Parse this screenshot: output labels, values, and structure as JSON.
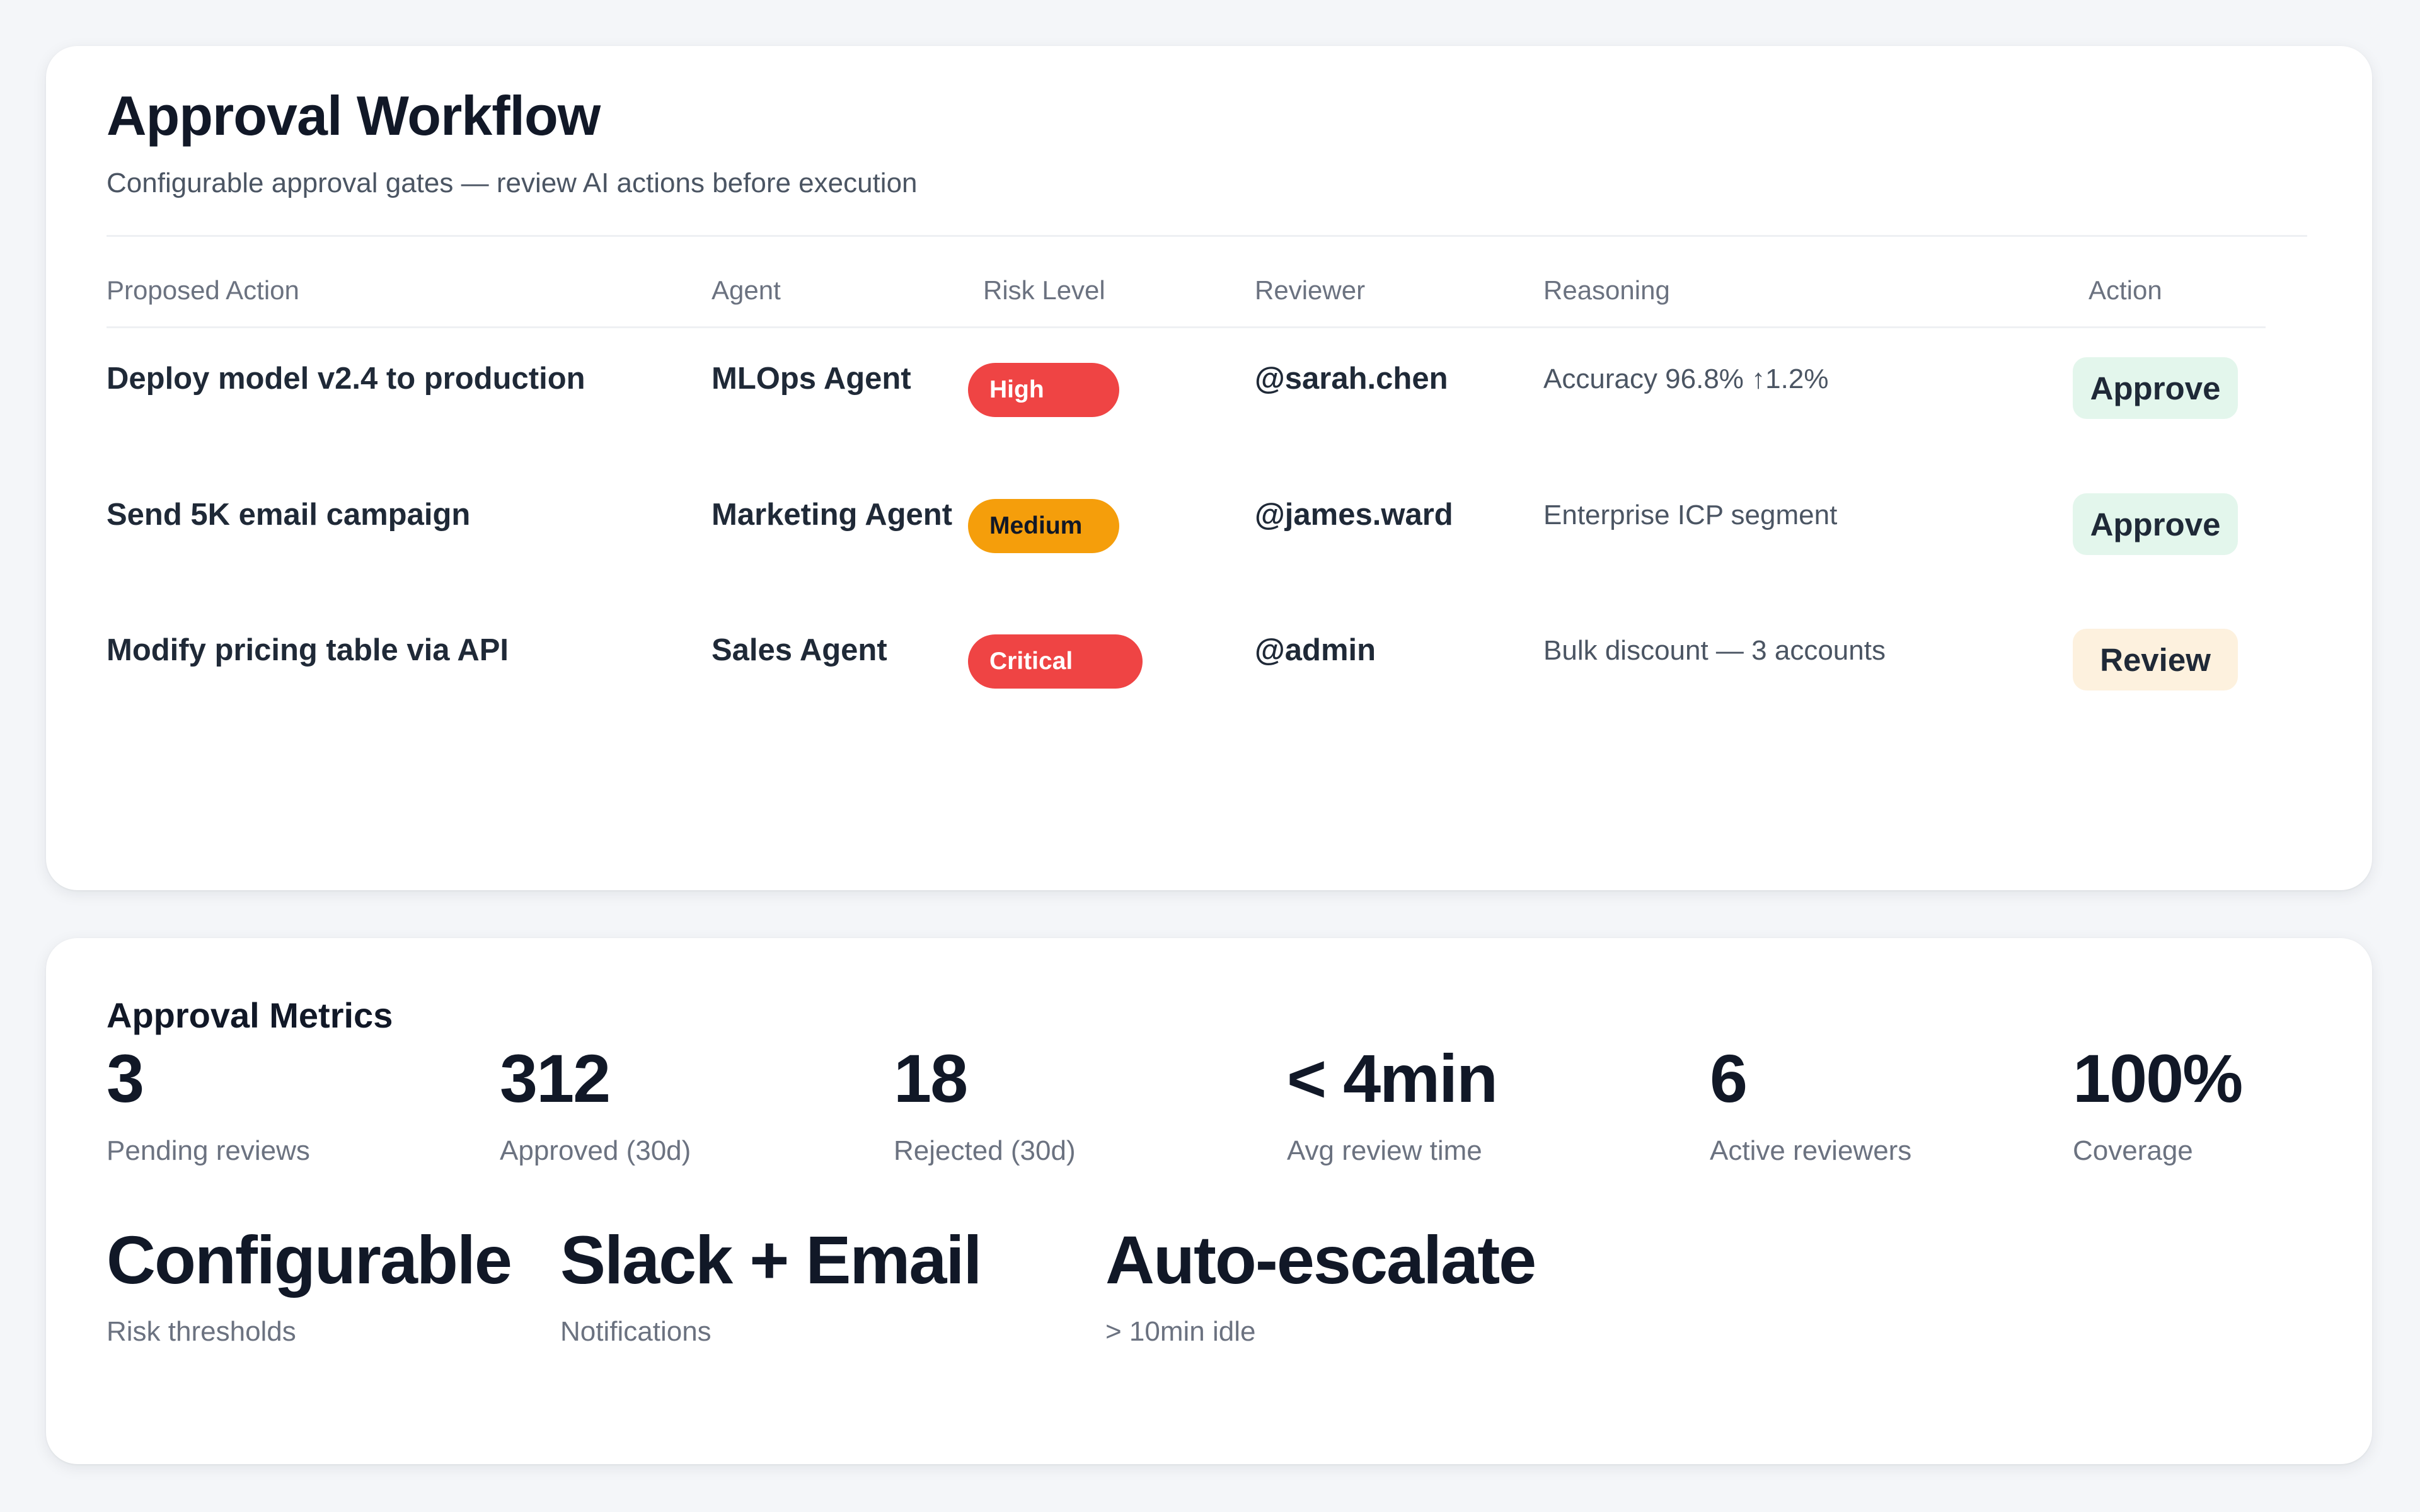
{
  "workflow": {
    "title": "Approval Workflow",
    "subtitle": "Configurable approval gates — review AI actions before execution",
    "columns": [
      "Proposed Action",
      "Agent",
      "Risk Level",
      "Reviewer",
      "Reasoning",
      "Action"
    ],
    "rows": [
      {
        "action": "Deploy model v2.4 to production",
        "agent": "MLOps Agent",
        "risk": "High",
        "risk_color": "#ef4444",
        "risk_text_color": "#ffffff",
        "reviewer": "@sarah.chen",
        "reasoning": "Accuracy 96.8% ↑1.2%",
        "button": "Approve",
        "button_color": "#e3f6ec"
      },
      {
        "action": "Send 5K email campaign",
        "agent": "Marketing Agent",
        "risk": "Medium",
        "risk_color": "#f59e0b",
        "risk_text_color": "#111827",
        "reviewer": "@james.ward",
        "reasoning": "Enterprise ICP segment",
        "button": "Approve",
        "button_color": "#e3f6ec"
      },
      {
        "action": "Modify pricing table via API",
        "agent": "Sales Agent",
        "risk": "Critical",
        "risk_color": "#ef4444",
        "risk_text_color": "#ffffff",
        "reviewer": "@admin",
        "reasoning": "Bulk discount — 3 accounts",
        "button": "Review",
        "button_color": "#fdf1de"
      }
    ]
  },
  "metrics": {
    "title": "Approval Metrics",
    "stats": [
      {
        "value": "3",
        "label": "Pending reviews"
      },
      {
        "value": "312",
        "label": "Approved (30d)"
      },
      {
        "value": "18",
        "label": "Rejected (30d)"
      },
      {
        "value": "< 4min",
        "label": "Avg review time"
      },
      {
        "value": "6",
        "label": "Active reviewers"
      },
      {
        "value": "100%",
        "label": "Coverage"
      }
    ],
    "features": [
      {
        "value": "Configurable",
        "label": "Risk thresholds"
      },
      {
        "value": "Slack + Email",
        "label": "Notifications"
      },
      {
        "value": "Auto-escalate",
        "label": "> 10min idle"
      }
    ]
  }
}
